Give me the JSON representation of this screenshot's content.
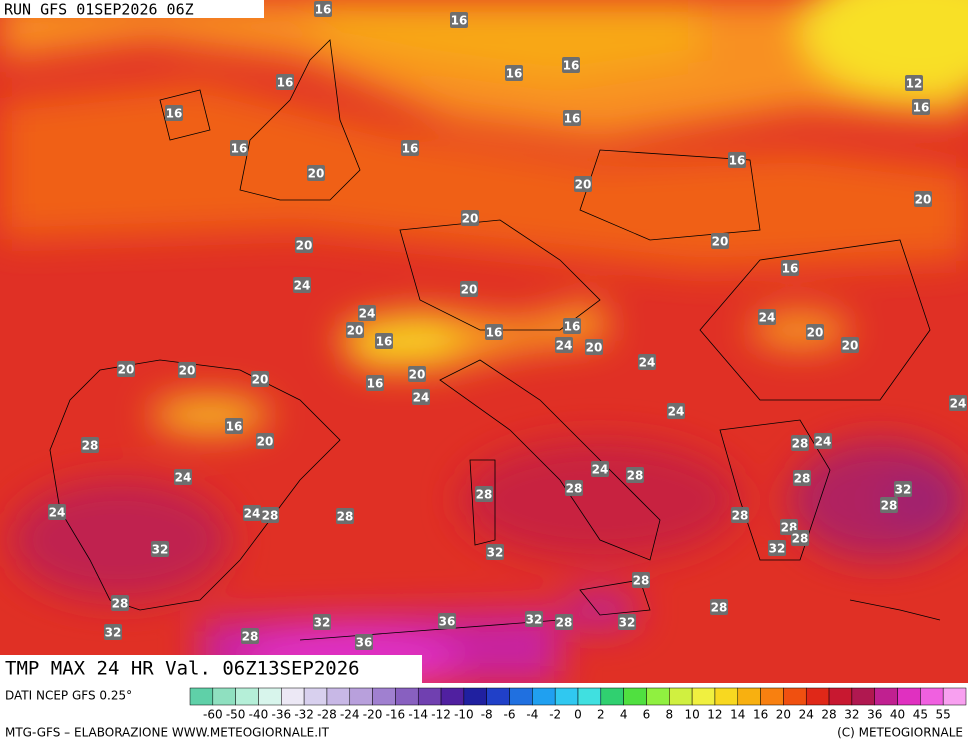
{
  "header": {
    "run": "RUN GFS 01SEP2026 06Z"
  },
  "map": {
    "title": "TMP MAX 24 HR Val. 06Z13SEP2026",
    "contour_labels": [
      16,
      16,
      16,
      16,
      16,
      12,
      16,
      16,
      16,
      16,
      16,
      16,
      20,
      20,
      20,
      20,
      20,
      20,
      16,
      24,
      20,
      24,
      24,
      20,
      16,
      16,
      16,
      20,
      24,
      20,
      20,
      24,
      20,
      20,
      20,
      16,
      20,
      24,
      24,
      24,
      16,
      20,
      28,
      28,
      24,
      24,
      28,
      24,
      28,
      28,
      28,
      32,
      28,
      24,
      24,
      28,
      28,
      28,
      28,
      28,
      32,
      32,
      32,
      28,
      28,
      28,
      32,
      36,
      32,
      28,
      32,
      32,
      28,
      36
    ]
  },
  "legend": {
    "source": "DATI NCEP GFS 0.25°",
    "labels": [
      "-60",
      "-50",
      "-40",
      "-36",
      "-32",
      "-28",
      "-24",
      "-20",
      "-16",
      "-14",
      "-12",
      "-10",
      "-8",
      "-6",
      "-4",
      "-2",
      "0",
      "2",
      "4",
      "6",
      "8",
      "10",
      "12",
      "14",
      "16",
      "20",
      "24",
      "28",
      "32",
      "36",
      "40",
      "45",
      "55"
    ],
    "colors": [
      "#5fd0a8",
      "#8fe0c0",
      "#b5efd8",
      "#d8f5ec",
      "#ece8f5",
      "#d8d0ee",
      "#c8b8e6",
      "#b8a0dc",
      "#a080d0",
      "#8860c0",
      "#7040b0",
      "#5020a0",
      "#2020a0",
      "#2040c8",
      "#2070e0",
      "#20a0f0",
      "#30c8f0",
      "#40e0e0",
      "#30d070",
      "#50e040",
      "#90f040",
      "#d0f040",
      "#f0f040",
      "#f8d820",
      "#f8b010",
      "#f88010",
      "#f05010",
      "#e02818",
      "#c81830",
      "#b01850",
      "#c02090",
      "#e030c0",
      "#f060e0",
      "#f8a0f0"
    ]
  },
  "footer": {
    "credit": "MTG-GFS – ELABORAZIONE WWW.METEOGIORNALE.IT",
    "copyright": "(C) METEOGIORNALE"
  }
}
